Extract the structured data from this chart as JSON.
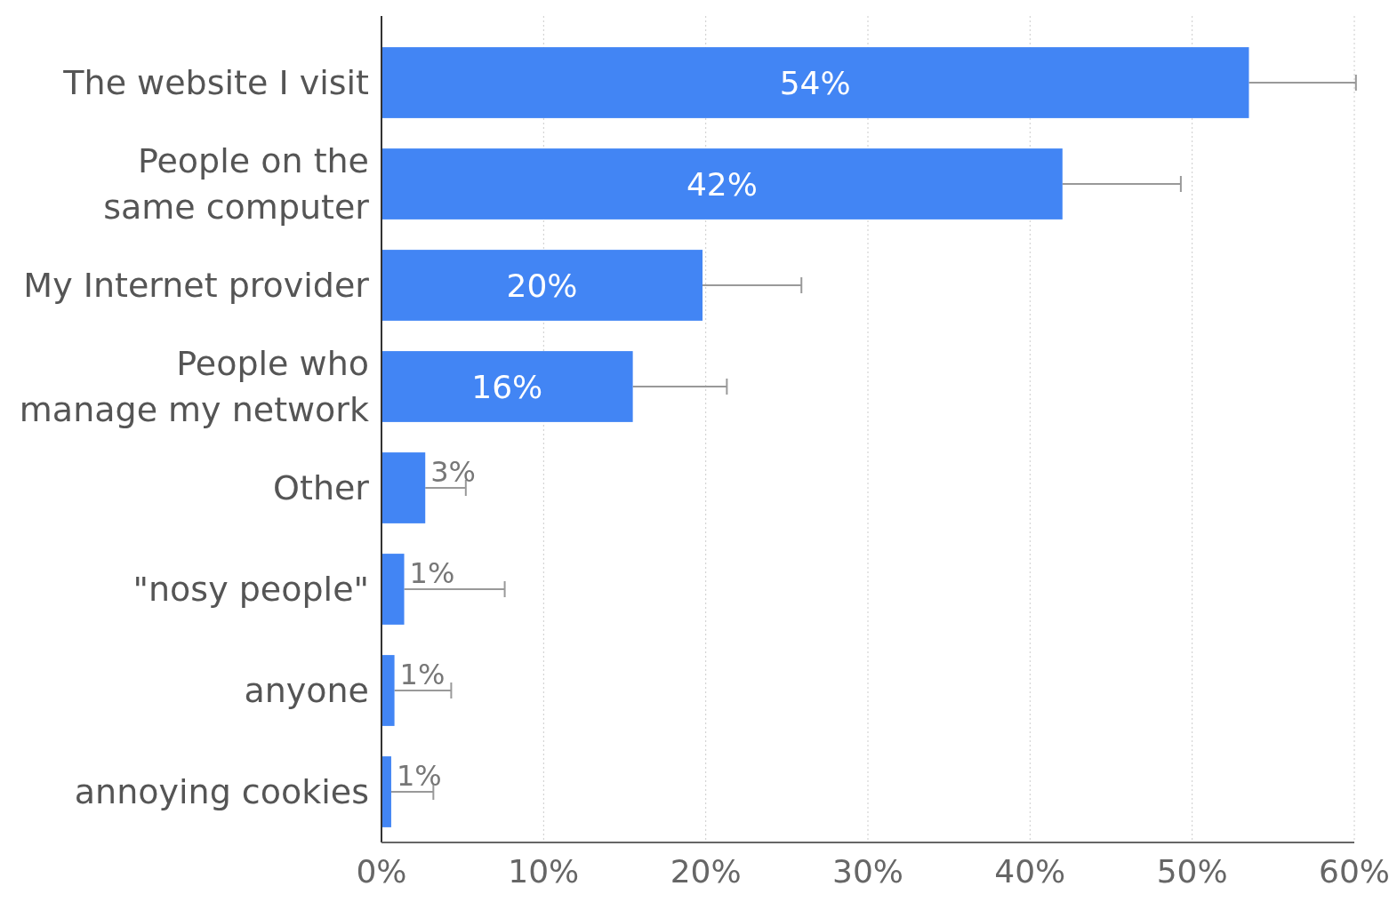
{
  "chart_data": {
    "type": "bar",
    "orientation": "horizontal",
    "categories": [
      "The website I visit",
      "People on the\nsame computer",
      "My Internet provider",
      "People who\nmanage my network",
      "Other",
      "\"nosy people\"",
      "anyone",
      "annoying cookies"
    ],
    "values": [
      53.5,
      42.0,
      19.8,
      15.5,
      2.7,
      1.4,
      0.8,
      0.6
    ],
    "errors": [
      [
        53.5,
        60.1
      ],
      [
        42.0,
        49.3
      ],
      [
        19.8,
        25.9
      ],
      [
        15.5,
        21.3
      ],
      [
        2.7,
        5.2
      ],
      [
        1.4,
        7.6
      ],
      [
        0.8,
        4.3
      ],
      [
        0.6,
        3.2
      ]
    ],
    "value_labels": [
      "54%",
      "42%",
      "20%",
      "16%",
      "3%",
      "1%",
      "1%",
      "1%"
    ],
    "color": "#4285f4",
    "xlim": [
      0,
      60
    ],
    "xticks": [
      {
        "value": 0,
        "label": "0%"
      },
      {
        "value": 10,
        "label": "10%"
      },
      {
        "value": 20,
        "label": "20%"
      },
      {
        "value": 30,
        "label": "30%"
      },
      {
        "value": 40,
        "label": "40%"
      },
      {
        "value": 50,
        "label": "50%"
      },
      {
        "value": 60,
        "label": "60%"
      }
    ],
    "grid": "x"
  }
}
